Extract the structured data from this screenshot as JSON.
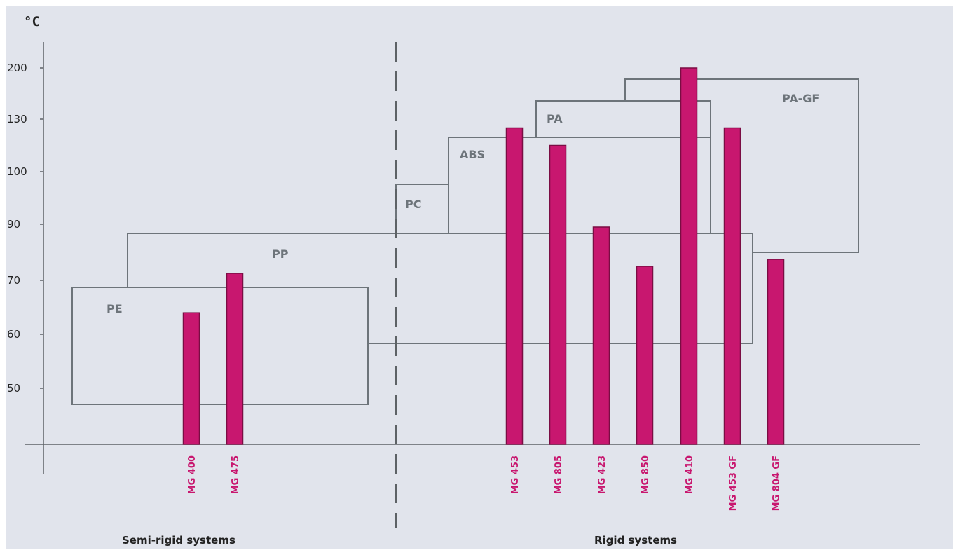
{
  "chart_data": {
    "type": "bar",
    "unit_label": "°C",
    "y_ticks": [
      "50",
      "60",
      "70",
      "90",
      "100",
      "130",
      "200"
    ],
    "categories": [
      "MG 400",
      "MG 475",
      "MG 453",
      "MG 805",
      "MG 423",
      "MG 850",
      "MG 410",
      "MG 453 GF",
      "MG 804 GF"
    ],
    "values": [
      64,
      72.5,
      125,
      115,
      89,
      75,
      200,
      125,
      77.5
    ],
    "groups": [
      {
        "name": "Semi-rigid systems",
        "categories": [
          "MG 400",
          "MG 475"
        ]
      },
      {
        "name": "Rigid systems",
        "categories": [
          "MG 453",
          "MG 805",
          "MG 423",
          "MG 850",
          "MG 410",
          "MG 453 GF",
          "MG 804 GF"
        ]
      }
    ],
    "material_ranges": [
      {
        "name": "PE",
        "max": 68.5
      },
      {
        "name": "PP",
        "max": 88.5
      },
      {
        "name": "PC",
        "max": 97.5
      },
      {
        "name": "ABS",
        "max": 120
      },
      {
        "name": "PA",
        "max": 137.5
      },
      {
        "name": "PA-GF",
        "max": 190
      }
    ],
    "colors": {
      "bar": "#c8176f",
      "outline": "#6d747a",
      "background": "#e1e4ec"
    }
  }
}
